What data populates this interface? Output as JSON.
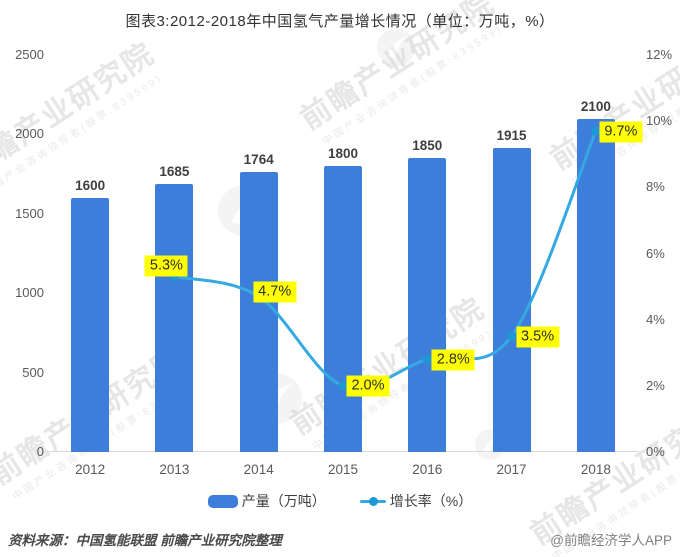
{
  "title": "图表3:2012-2018年中国氢气产量增长情况（单位：万吨，%）",
  "chart_data": {
    "type": "bar",
    "subtype": "bar+line dual axis",
    "categories": [
      "2012",
      "2013",
      "2014",
      "2015",
      "2016",
      "2017",
      "2018"
    ],
    "series": [
      {
        "name": "产量（万吨）",
        "type": "bar",
        "axis": "left",
        "values": [
          1600,
          1685,
          1764,
          1800,
          1850,
          1915,
          2100
        ],
        "value_labels": [
          "1600",
          "1685",
          "1764",
          "1800",
          "1850",
          "1915",
          "2100"
        ],
        "color": "#3D7EDB"
      },
      {
        "name": "增长率（%）",
        "type": "line",
        "axis": "right",
        "values": [
          null,
          5.3,
          4.7,
          2.0,
          2.8,
          3.5,
          9.7
        ],
        "value_labels": [
          null,
          "5.3%",
          "4.7%",
          "2.0%",
          "2.8%",
          "3.5%",
          "9.7%"
        ],
        "color": "#35A9E1",
        "marker_color": "#1E97D4",
        "label_bg": "#FFFF00"
      }
    ],
    "left_axis": {
      "min": 0,
      "max": 2500,
      "step": 500,
      "ticks": [
        "0",
        "500",
        "1000",
        "1500",
        "2000",
        "2500"
      ]
    },
    "right_axis": {
      "min": 0,
      "max": 12,
      "step": 2,
      "ticks": [
        "0%",
        "2%",
        "4%",
        "6%",
        "8%",
        "10%",
        "12%"
      ]
    },
    "grid": false,
    "legend_position": "bottom-center"
  },
  "legend": {
    "items": [
      {
        "label": "产量（万吨）",
        "swatch": "bar-swatch"
      },
      {
        "label": "增长率（%）",
        "swatch": "line-swatch"
      }
    ]
  },
  "footer": {
    "source": "资料来源：中国氢能联盟 前瞻产业研究院整理",
    "credit": "@前瞻经济学人APP"
  },
  "watermark": {
    "text": "前瞻产业研究院",
    "subtext": "中国产业咨询领导者(股票:839599)"
  },
  "colors": {
    "bar": "#3D7EDB",
    "line": "#35A9E1",
    "marker": "#1E97D4",
    "label_bg": "#FFFF00",
    "axis_text": "#595959",
    "axis_line": "#d9d9d9",
    "title_text": "#333333"
  }
}
